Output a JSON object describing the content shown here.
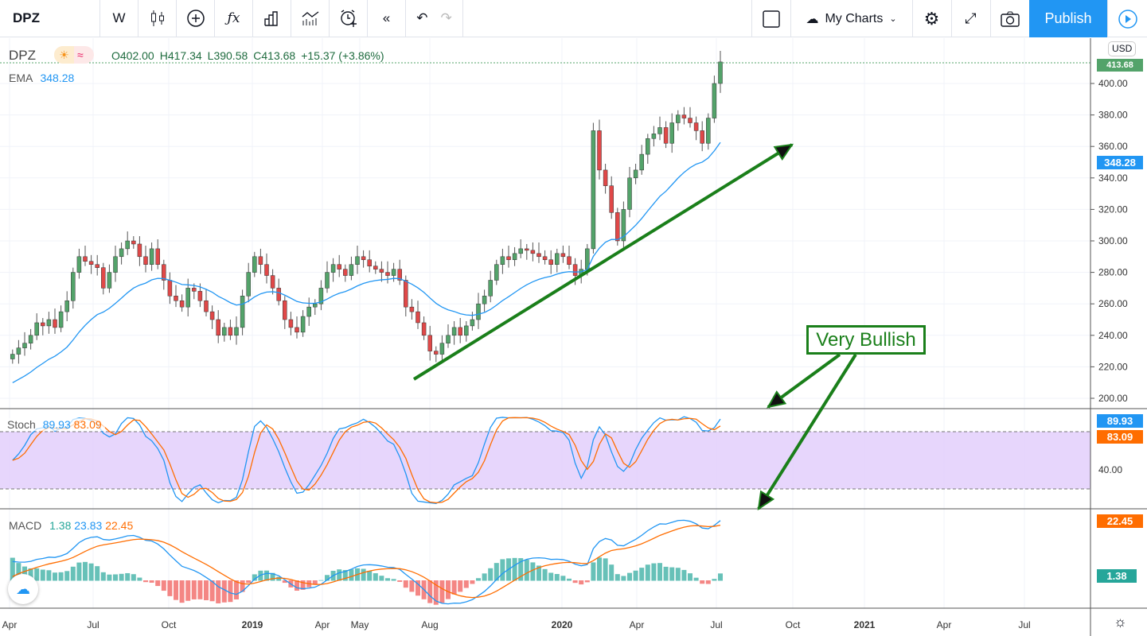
{
  "toolbar": {
    "symbol": "DPZ",
    "interval": "W",
    "my_charts": "My Charts",
    "publish": "Publish"
  },
  "legend": {
    "symbol": "DPZ",
    "open": "O402.00",
    "high": "H417.34",
    "low": "L390.58",
    "close": "C413.68",
    "change": "+15.37 (+3.86%)",
    "ema_label": "EMA",
    "ema_value": "348.28",
    "stoch_label": "Stoch",
    "stoch_k": "89.93",
    "stoch_d": "83.09",
    "macd_label": "MACD",
    "macd_hist": "1.38",
    "macd_line": "23.83",
    "macd_signal": "22.45"
  },
  "price_axis": {
    "currency": "USD",
    "ticks": [
      "400.00",
      "380.00",
      "360.00",
      "340.00",
      "320.00",
      "300.00",
      "280.00",
      "260.00",
      "240.00",
      "220.00",
      "200.00"
    ],
    "last_price_tag": "413.68",
    "ema_tag": "348.28"
  },
  "stoch_axis": {
    "tick": "40.00",
    "k_tag": "89.93",
    "d_tag": "83.09"
  },
  "macd_axis": {
    "signal_tag": "22.45",
    "hist_tag": "1.38"
  },
  "time_axis": [
    "Apr",
    "Jul",
    "Oct",
    "2019",
    "Apr",
    "May",
    "Aug",
    "2020",
    "Apr",
    "Jul",
    "Oct",
    "2021",
    "Apr",
    "Jul"
  ],
  "annotation": {
    "text": "Very Bullish",
    "color": "#1a7f1a"
  },
  "colors": {
    "up": "#53a36a",
    "down": "#e04848",
    "ema": "#2196f3",
    "stoch_k": "#2196f3",
    "stoch_d": "#ff6d00",
    "accent": "#2196f3"
  },
  "chart_data": {
    "type": "candlestick",
    "interval": "weekly",
    "closes": [
      228,
      232,
      235,
      240,
      248,
      246,
      250,
      245,
      255,
      262,
      280,
      290,
      287,
      285,
      283,
      270,
      280,
      290,
      295,
      300,
      298,
      290,
      285,
      295,
      285,
      275,
      265,
      262,
      258,
      270,
      268,
      262,
      255,
      250,
      240,
      245,
      240,
      245,
      265,
      280,
      290,
      285,
      278,
      270,
      262,
      250,
      245,
      242,
      252,
      258,
      260,
      270,
      280,
      285,
      282,
      278,
      285,
      290,
      288,
      284,
      282,
      280,
      278,
      282,
      275,
      258,
      255,
      248,
      240,
      230,
      228,
      235,
      240,
      245,
      240,
      246,
      250,
      260,
      265,
      275,
      285,
      290,
      288,
      292,
      295,
      294,
      292,
      290,
      288,
      285,
      292,
      290,
      285,
      278,
      282,
      295,
      370,
      345,
      335,
      318,
      300,
      320,
      340,
      345,
      355,
      365,
      368,
      372,
      362,
      375,
      380,
      378,
      375,
      370,
      362,
      378,
      400,
      413.68
    ],
    "ylim": [
      190,
      420
    ]
  }
}
